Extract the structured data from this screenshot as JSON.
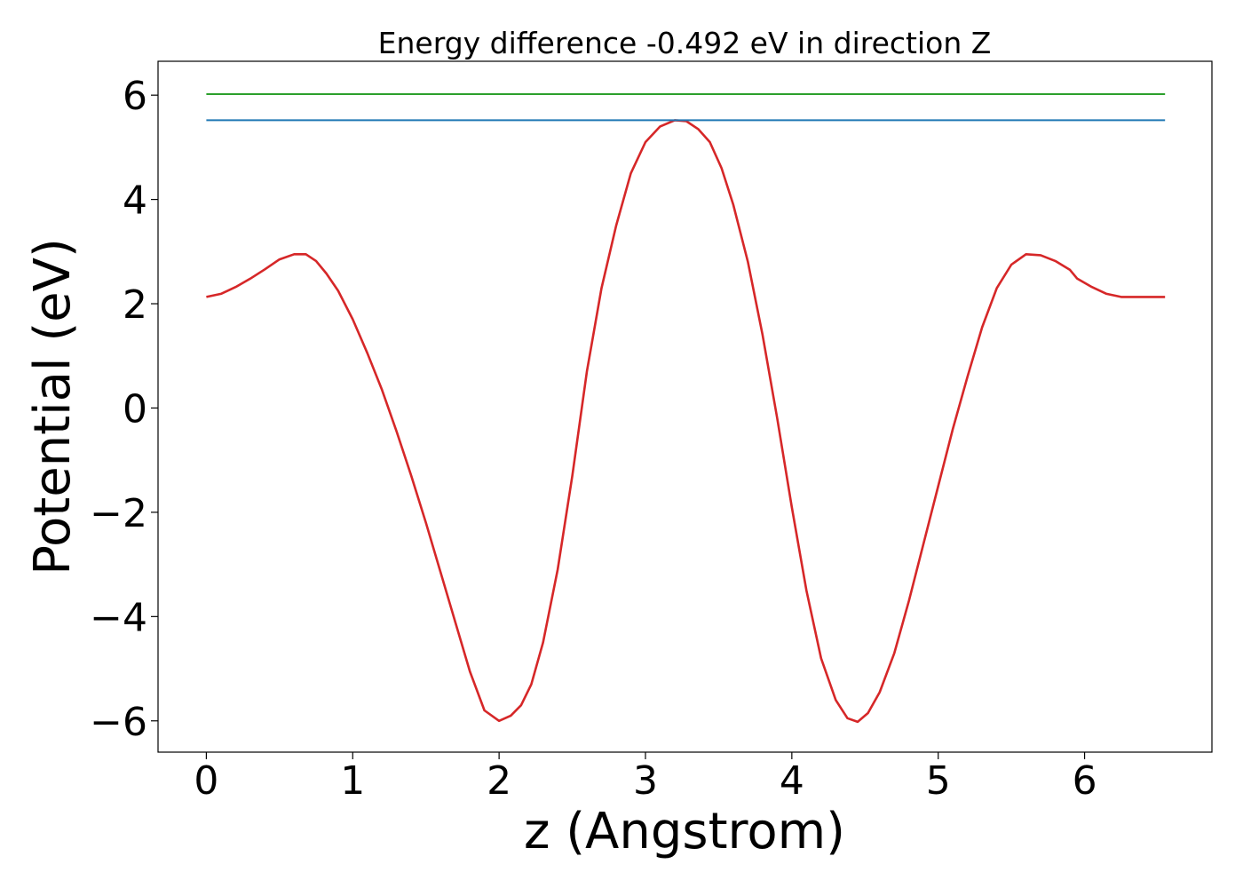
{
  "chart_data": {
    "type": "line",
    "title": "Energy difference -0.492 eV in direction Z",
    "xlabel": "z (Angstrom)",
    "ylabel": "Potential (eV)",
    "xlim": [
      -0.33,
      6.87
    ],
    "ylim": [
      -6.6,
      6.65
    ],
    "xticks": [
      0,
      1,
      2,
      3,
      4,
      5,
      6
    ],
    "xtick_labels": [
      "0",
      "1",
      "2",
      "3",
      "4",
      "5",
      "6"
    ],
    "yticks": [
      -6,
      -4,
      -2,
      0,
      2,
      4,
      6
    ],
    "ytick_labels": [
      "−6",
      "−4",
      "−2",
      "0",
      "2",
      "4",
      "6"
    ],
    "grid": false,
    "series": [
      {
        "color": "#d62728",
        "x": [
          0,
          0.1,
          0.2,
          0.3,
          0.4,
          0.5,
          0.6,
          0.68,
          0.75,
          0.82,
          0.9,
          1.0,
          1.1,
          1.2,
          1.3,
          1.4,
          1.5,
          1.6,
          1.7,
          1.8,
          1.9,
          2.0,
          2.08,
          2.15,
          2.22,
          2.3,
          2.4,
          2.5,
          2.6,
          2.7,
          2.8,
          2.9,
          3.0,
          3.1,
          3.2,
          3.28,
          3.36,
          3.44,
          3.52,
          3.6,
          3.7,
          3.8,
          3.9,
          4.0,
          4.1,
          4.2,
          4.3,
          4.38,
          4.45,
          4.52,
          4.6,
          4.7,
          4.8,
          4.9,
          5.0,
          5.1,
          5.2,
          5.3,
          5.4,
          5.5,
          5.6,
          5.7,
          5.8,
          5.9,
          5.95,
          6.05,
          6.15,
          6.25,
          6.35,
          6.45,
          6.55
        ],
        "values": [
          2.13,
          2.19,
          2.32,
          2.48,
          2.66,
          2.85,
          2.95,
          2.95,
          2.82,
          2.58,
          2.25,
          1.7,
          1.05,
          0.35,
          -0.45,
          -1.3,
          -2.2,
          -3.15,
          -4.1,
          -5.05,
          -5.8,
          -6.0,
          -5.9,
          -5.7,
          -5.3,
          -4.5,
          -3.1,
          -1.3,
          0.7,
          2.3,
          3.5,
          4.5,
          5.1,
          5.4,
          5.52,
          5.5,
          5.35,
          5.1,
          4.6,
          3.9,
          2.8,
          1.4,
          -0.2,
          -1.9,
          -3.5,
          -4.8,
          -5.6,
          -5.95,
          -6.02,
          -5.85,
          -5.45,
          -4.7,
          -3.7,
          -2.6,
          -1.5,
          -0.4,
          0.6,
          1.55,
          2.3,
          2.75,
          2.95,
          2.93,
          2.82,
          2.65,
          2.48,
          2.32,
          2.19,
          2.13,
          2.13,
          2.13,
          2.13
        ]
      },
      {
        "color": "#1f77b4",
        "x": [
          0,
          6.55
        ],
        "values": [
          5.52,
          5.52
        ]
      },
      {
        "color": "#2ca02c",
        "x": [
          0,
          6.55
        ],
        "values": [
          6.02,
          6.02
        ]
      }
    ]
  }
}
